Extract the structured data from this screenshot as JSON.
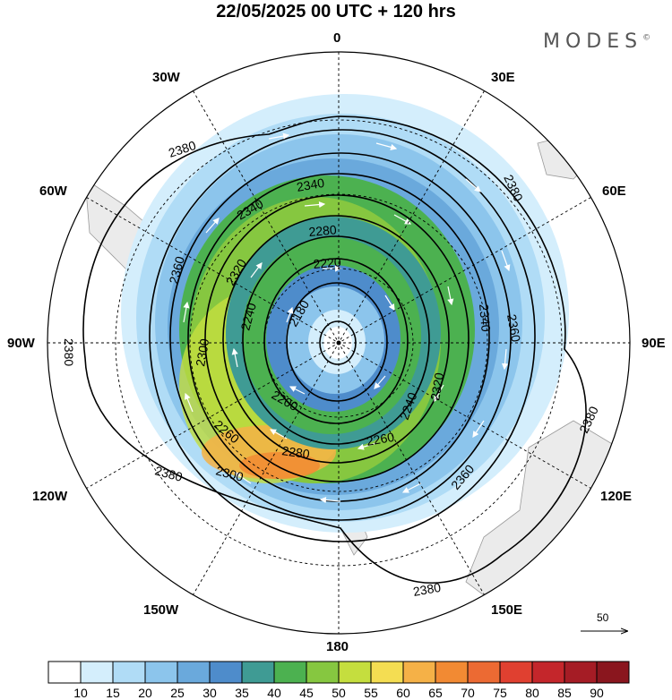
{
  "title": "22/05/2025  00 UTC  + 120 hrs",
  "brand": "MODES",
  "brand_mark": "©",
  "longitude_labels": {
    "top": "0",
    "n30e": "30E",
    "n60e": "60E",
    "e90": "90E",
    "s120e": "120E",
    "s150e": "150E",
    "bottom": "180",
    "s150w": "150W",
    "s120w": "120W",
    "w90": "90W",
    "n60w": "60W",
    "n30w": "30W"
  },
  "reference_vector": {
    "label": "50"
  },
  "contour_labels": [
    "2380",
    "2380",
    "2380",
    "2380",
    "2380",
    "2380",
    "2360",
    "2360",
    "2360",
    "2340",
    "2340",
    "2340",
    "2320",
    "2320",
    "2300",
    "2300",
    "2280",
    "2280",
    "2260",
    "2260",
    "2240",
    "2240",
    "2220",
    "2200",
    "2180"
  ],
  "colorbar": {
    "ticks": [
      "10",
      "15",
      "20",
      "25",
      "30",
      "35",
      "40",
      "45",
      "50",
      "55",
      "60",
      "65",
      "70",
      "75",
      "80",
      "85",
      "90"
    ],
    "colors": [
      "#ffffff",
      "#d4eefc",
      "#b0dcf6",
      "#8cc5ec",
      "#6aa9dc",
      "#4e8ccb",
      "#3f9b94",
      "#4cb150",
      "#86c740",
      "#c5de3e",
      "#f4dd52",
      "#f5b147",
      "#f28a33",
      "#ec6a33",
      "#e04030",
      "#c4262b",
      "#a51c25",
      "#8a161e"
    ]
  }
}
